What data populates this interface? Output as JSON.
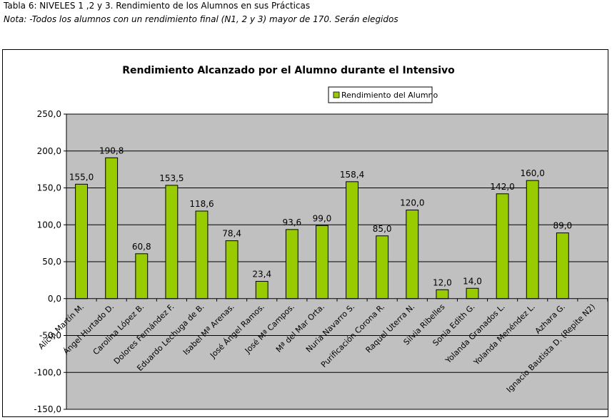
{
  "document": {
    "title": "Tabla 6: NIVELES 1 ,2 y 3. Rendimiento de los Alumnos en sus Prácticas",
    "note": "Nota: -Todos los alumnos con un rendimiento final (N1, 2 y 3) mayor de 170. Serán elegidos"
  },
  "chart_data": {
    "type": "bar",
    "title": "Rendimiento Alcanzado por el Alumno durante el Intensivo",
    "legend_position": "top-center",
    "grid": true,
    "ylim": [
      -150,
      250
    ],
    "yticks": [
      "-150,0",
      "-100,0",
      "-50,0",
      "0,0",
      "50,0",
      "100,0",
      "150,0",
      "200,0",
      "250,0"
    ],
    "series": [
      {
        "name": "Rendimiento del Alumno",
        "color": "#99cc00",
        "values": [
          155.0,
          190.8,
          60.8,
          153.5,
          118.6,
          78.4,
          23.4,
          93.6,
          99.0,
          158.4,
          85.0,
          120.0,
          12.0,
          14.0,
          142.0,
          160.0,
          89.0,
          null
        ],
        "labels": [
          "155,0",
          "190,8",
          "60,8",
          "153,5",
          "118,6",
          "78,4",
          "23,4",
          "93,6",
          "99,0",
          "158,4",
          "85,0",
          "120,0",
          "12,0",
          "14,0",
          "142,0",
          "160,0",
          "89,0",
          ""
        ]
      }
    ],
    "categories": [
      "Alicia Martín M.",
      "Ángel Hurtado D.",
      "Carolina López B.",
      "Dolores Fernández F.",
      "Eduardo Lechuga de B.",
      "Isabel Mª Arenas.",
      "José Ángel Ramos.",
      "José Mª Campos.",
      "Mª del Mar Orta.",
      "Nuria Navarro S.",
      "Purificación Corona R.",
      "Raquel Uterra N.",
      "Silvia Ribelles",
      "Sonia Edith G.",
      "Yolanda Granados L.",
      "Yolanda Menéndez L.",
      "Azhara G.",
      "Ignacio Bautista D. (Repite N2)"
    ],
    "colors": {
      "plot_bg": "#c0c0c0",
      "bar": "#99cc00",
      "bar_stroke": "#000000",
      "grid": "#000000"
    }
  }
}
